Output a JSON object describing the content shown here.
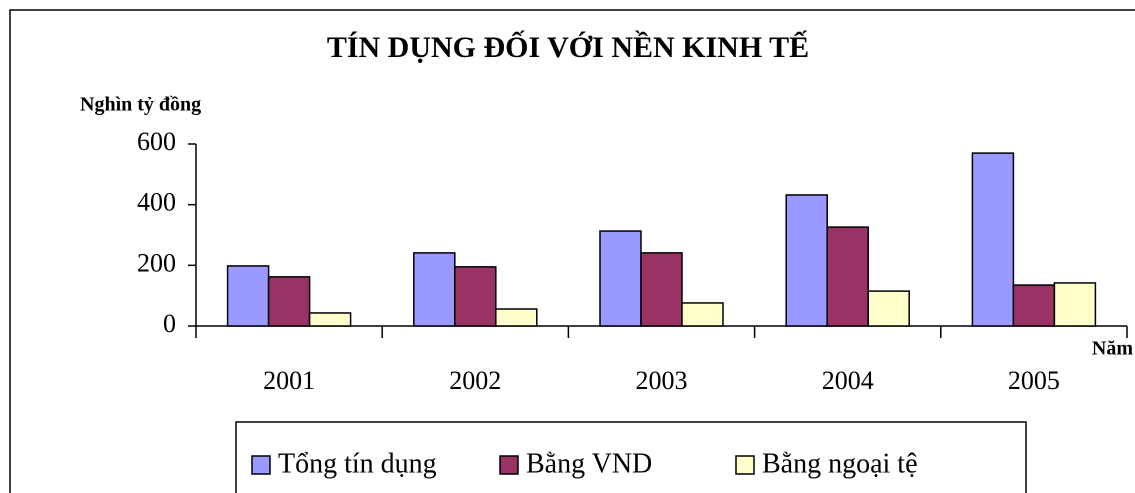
{
  "chart_data": {
    "type": "bar",
    "title": "TÍN DỤNG ĐỐI VỚI NỀN KINH TẾ",
    "y_label": "Nghìn tỷ đồng",
    "x_label": "Năm",
    "categories": [
      "2001",
      "2002",
      "2003",
      "2004",
      "2005"
    ],
    "series": [
      {
        "name": "Tổng tín dụng",
        "color": "#9999ff",
        "values": [
          198,
          241,
          313,
          432,
          570
        ]
      },
      {
        "name": "Bằng VND",
        "color": "#993366",
        "values": [
          162,
          195,
          241,
          326,
          135
        ]
      },
      {
        "name": "Bằng ngoại tệ",
        "color": "#ffffcc",
        "values": [
          43,
          56,
          76,
          115,
          142
        ]
      }
    ],
    "ylim": [
      0,
      600
    ],
    "yticks": [
      0,
      200,
      400,
      600
    ],
    "grid": false,
    "legend": "bottom"
  }
}
